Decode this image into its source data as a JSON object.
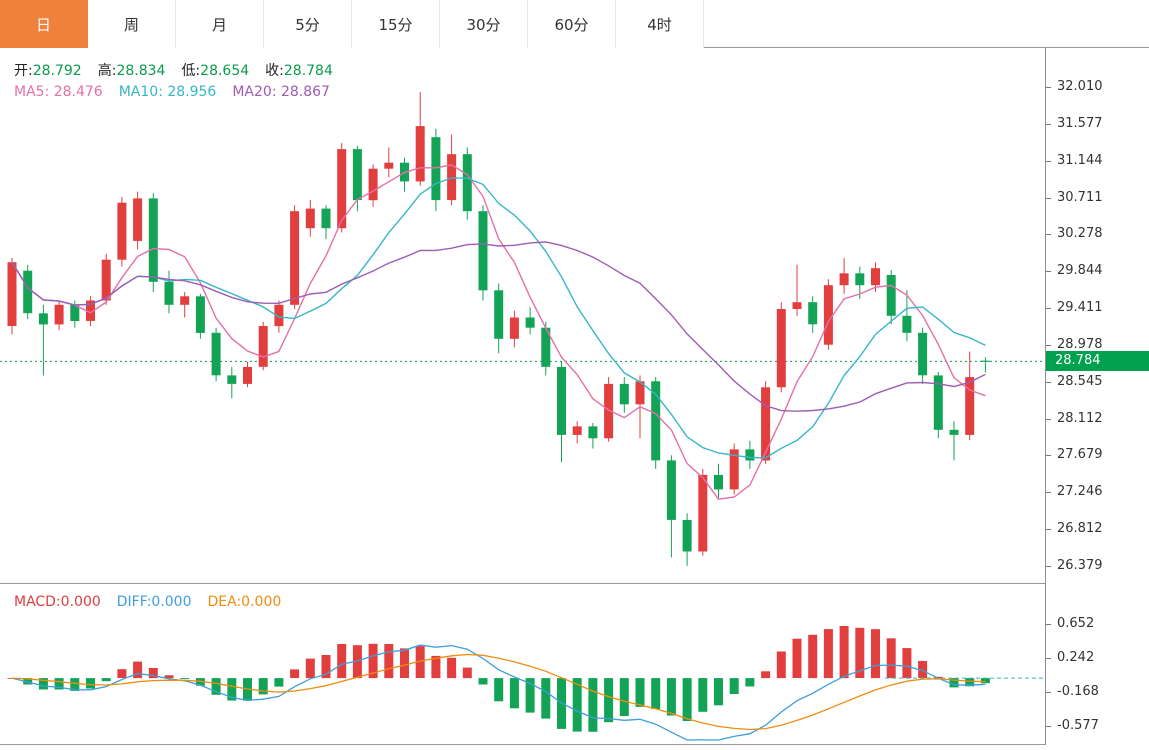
{
  "tabs": [
    {
      "label": "日",
      "active": true
    },
    {
      "label": "周",
      "active": false
    },
    {
      "label": "月",
      "active": false
    },
    {
      "label": "5分",
      "active": false
    },
    {
      "label": "15分",
      "active": false
    },
    {
      "label": "30分",
      "active": false
    },
    {
      "label": "60分",
      "active": false
    },
    {
      "label": "4时",
      "active": false
    }
  ],
  "legend": {
    "ohlc": [
      {
        "label": "开:",
        "value": "28.792"
      },
      {
        "label": "高:",
        "value": "28.834"
      },
      {
        "label": "低:",
        "value": "28.654"
      },
      {
        "label": "收:",
        "value": "28.784"
      }
    ],
    "ma": [
      {
        "label": "MA5: 28.476",
        "color": "#e66fa8"
      },
      {
        "label": "MA10: 28.956",
        "color": "#36b6c8"
      },
      {
        "label": "MA20: 28.867",
        "color": "#a05cb5"
      }
    ],
    "macd": [
      {
        "label": "MACD:0.000",
        "color": "#e23e3e"
      },
      {
        "label": "DIFF:0.000",
        "color": "#3d9fdd"
      },
      {
        "label": "DEA:0.000",
        "color": "#ee8d0e"
      }
    ]
  },
  "colors": {
    "up": "#e23e3e",
    "down": "#12a356",
    "price_line": "#00a14e",
    "ma5": "#e66fa8",
    "ma10": "#36b6c8",
    "ma20": "#a05cb5",
    "diff": "#3d9fdd",
    "dea": "#ee8d0e",
    "tab_active_bg": "#f0813a"
  },
  "chart_data": {
    "type": "candlestick",
    "overlays": [
      "MA5",
      "MA10",
      "MA20"
    ],
    "current_price": 28.784,
    "current_price_label": "28.784",
    "last_candle": {
      "open": 28.792,
      "high": 28.834,
      "low": 28.654,
      "close": 28.784
    },
    "y_ticks": [
      32.01,
      31.577,
      31.144,
      30.711,
      30.278,
      29.844,
      29.411,
      28.978,
      28.545,
      28.112,
      27.679,
      27.246,
      26.812,
      26.379
    ],
    "price_range": [
      26.379,
      32.01
    ],
    "candles_ohlc": [
      [
        29.2,
        30.0,
        29.1,
        29.95
      ],
      [
        29.85,
        29.92,
        29.28,
        29.35
      ],
      [
        29.35,
        29.45,
        28.62,
        29.22
      ],
      [
        29.22,
        29.5,
        29.15,
        29.45
      ],
      [
        29.45,
        29.5,
        29.18,
        29.26
      ],
      [
        29.26,
        29.55,
        29.2,
        29.5
      ],
      [
        29.5,
        30.05,
        29.45,
        29.98
      ],
      [
        29.98,
        30.72,
        29.9,
        30.65
      ],
      [
        30.2,
        30.78,
        30.1,
        30.7
      ],
      [
        30.7,
        30.76,
        29.6,
        29.72
      ],
      [
        29.72,
        29.85,
        29.35,
        29.45
      ],
      [
        29.45,
        29.6,
        29.3,
        29.55
      ],
      [
        29.55,
        29.58,
        29.05,
        29.12
      ],
      [
        29.12,
        29.18,
        28.55,
        28.62
      ],
      [
        28.62,
        28.72,
        28.35,
        28.52
      ],
      [
        28.52,
        28.78,
        28.48,
        28.72
      ],
      [
        28.72,
        29.25,
        28.68,
        29.2
      ],
      [
        29.2,
        29.5,
        29.12,
        29.45
      ],
      [
        29.45,
        30.62,
        29.4,
        30.55
      ],
      [
        30.35,
        30.68,
        30.25,
        30.58
      ],
      [
        30.58,
        30.62,
        30.22,
        30.35
      ],
      [
        30.35,
        31.35,
        30.3,
        31.28
      ],
      [
        31.28,
        31.32,
        30.55,
        30.68
      ],
      [
        30.68,
        31.1,
        30.6,
        31.05
      ],
      [
        31.05,
        31.3,
        30.95,
        31.12
      ],
      [
        31.12,
        31.18,
        30.78,
        30.9
      ],
      [
        30.9,
        31.95,
        30.85,
        31.55
      ],
      [
        31.42,
        31.52,
        30.55,
        30.68
      ],
      [
        30.68,
        31.45,
        30.62,
        31.22
      ],
      [
        31.22,
        31.3,
        30.45,
        30.55
      ],
      [
        30.55,
        30.62,
        29.5,
        29.62
      ],
      [
        29.62,
        29.7,
        28.88,
        29.05
      ],
      [
        29.05,
        29.38,
        28.95,
        29.3
      ],
      [
        29.3,
        29.42,
        29.1,
        29.18
      ],
      [
        29.18,
        29.25,
        28.62,
        28.72
      ],
      [
        28.72,
        28.78,
        27.6,
        27.92
      ],
      [
        27.92,
        28.08,
        27.82,
        28.02
      ],
      [
        28.02,
        28.06,
        27.76,
        27.88
      ],
      [
        27.88,
        28.6,
        27.84,
        28.52
      ],
      [
        28.52,
        28.6,
        28.18,
        28.28
      ],
      [
        28.28,
        28.62,
        27.88,
        28.55
      ],
      [
        28.55,
        28.6,
        27.52,
        27.62
      ],
      [
        27.62,
        27.68,
        26.48,
        26.92
      ],
      [
        26.92,
        27.0,
        26.38,
        26.55
      ],
      [
        26.55,
        27.52,
        26.5,
        27.45
      ],
      [
        27.45,
        27.58,
        27.18,
        27.28
      ],
      [
        27.28,
        27.82,
        27.22,
        27.75
      ],
      [
        27.75,
        27.85,
        27.52,
        27.62
      ],
      [
        27.62,
        28.55,
        27.58,
        28.48
      ],
      [
        28.48,
        29.48,
        28.42,
        29.4
      ],
      [
        29.4,
        29.92,
        29.32,
        29.48
      ],
      [
        29.48,
        29.55,
        29.12,
        29.22
      ],
      [
        28.98,
        29.75,
        28.92,
        29.68
      ],
      [
        29.68,
        30.0,
        29.58,
        29.82
      ],
      [
        29.82,
        29.9,
        29.52,
        29.68
      ],
      [
        29.68,
        29.95,
        29.6,
        29.88
      ],
      [
        29.8,
        29.86,
        29.22,
        29.32
      ],
      [
        29.32,
        29.62,
        29.02,
        29.12
      ],
      [
        29.12,
        29.18,
        28.52,
        28.62
      ],
      [
        28.62,
        28.66,
        27.88,
        27.98
      ],
      [
        27.98,
        28.08,
        27.62,
        27.92
      ],
      [
        27.92,
        28.9,
        27.86,
        28.6
      ],
      [
        28.792,
        28.834,
        28.654,
        28.784
      ]
    ],
    "macd_panel": {
      "y_ticks": [
        0.652,
        0.242,
        -0.168,
        -0.577
      ]
    }
  }
}
